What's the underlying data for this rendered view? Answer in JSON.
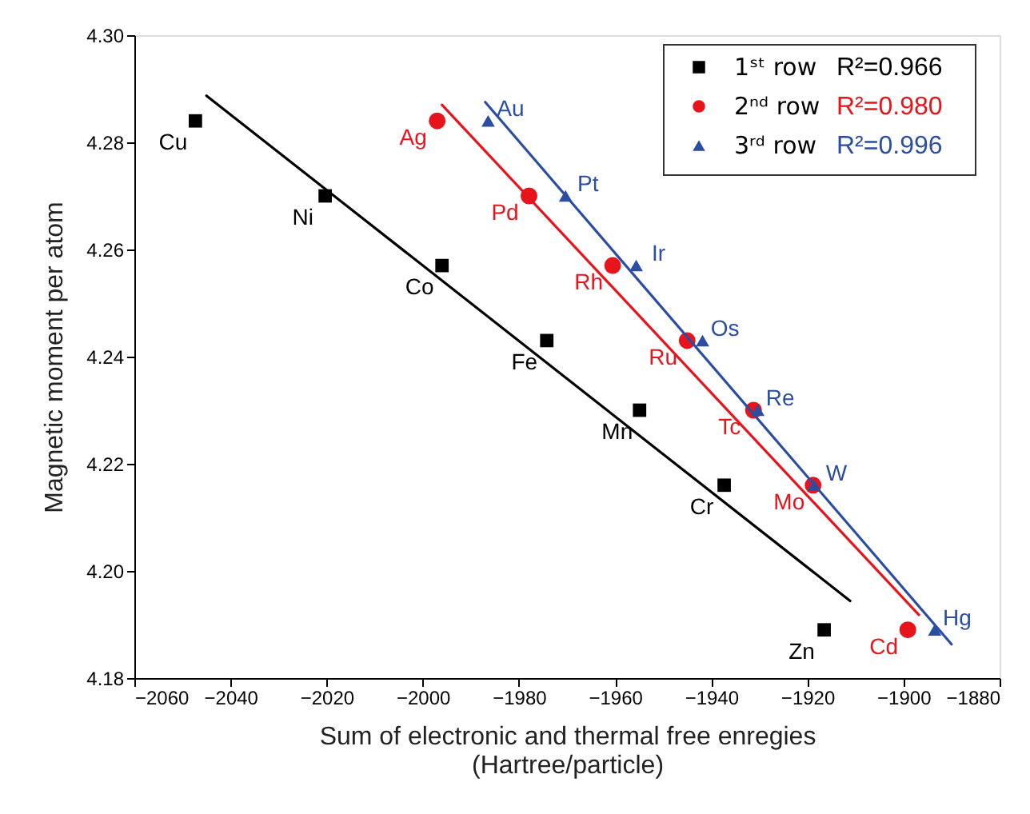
{
  "chart_data": {
    "type": "scatter",
    "xlabel": "Sum of  electronic and thermal free enregies\n(Hartree/particle)",
    "ylabel": "Magnetic moment per atom",
    "xlim": [
      -2060,
      -1880
    ],
    "xticks": [
      -2060,
      -2040,
      -2020,
      -2000,
      -1980,
      -1960,
      -1940,
      -1920,
      -1900,
      -1880
    ],
    "ylim": [
      4.18,
      4.3
    ],
    "yticks": [
      4.18,
      {
        "value": 4.2,
        "label": "4.20"
      },
      4.22,
      4.24,
      4.26,
      4.28,
      {
        "value": 4.3,
        "label": "4.30"
      }
    ],
    "grid": false,
    "legend": "top right",
    "series": [
      {
        "name": "1ˢᵗ row",
        "marker": "square",
        "color": "#000000",
        "x": [
          -2047.3,
          -2020.3,
          -1996.0,
          -1974.2,
          -1954.9,
          -1937.3,
          -1916.5
        ],
        "values": [
          4.284,
          4.27,
          4.257,
          4.243,
          4.23,
          4.216,
          4.189
        ]
      },
      {
        "name": "2ⁿᵈ row",
        "marker": "circle",
        "color": "#e8141b",
        "x": [
          -1997.0,
          -1977.9,
          -1960.5,
          -1945.0,
          -1931.2,
          -1918.8,
          -1899.1
        ],
        "values": [
          4.284,
          4.27,
          4.257,
          4.243,
          4.23,
          4.216,
          4.189
        ]
      },
      {
        "name": "3ʳᵈ row",
        "marker": "triangle",
        "color": "#2b4ea2",
        "x": [
          -1986.4,
          -1970.3,
          -1955.6,
          -1941.8,
          -1930.3,
          -1918.6,
          -1893.5
        ],
        "values": [
          4.284,
          4.27,
          4.257,
          4.243,
          4.23,
          4.216,
          4.189
        ]
      },
      {
        "type": "line",
        "line_style": "solid",
        "color": "#000000",
        "x": [
          -2045.0,
          -1911.1
        ],
        "values": [
          4.2887,
          4.1944
        ]
      },
      {
        "type": "line",
        "line_style": "solid",
        "color": "#e8141b",
        "x": [
          -1996.0,
          -1896.8
        ],
        "values": [
          4.287,
          4.1918
        ]
      },
      {
        "type": "line",
        "line_style": "solid",
        "color": "#2b4ea2",
        "x": [
          -1987.0,
          -1890.0
        ],
        "values": [
          4.2875,
          4.1863
        ]
      }
    ],
    "annotations": [
      "R²=0.966",
      "R²=0.980",
      "R²=0.996",
      {
        "text": "Cu",
        "x": -2047.3,
        "y": 4.284
      },
      {
        "text": "Ni",
        "x": -2020.3,
        "y": 4.27
      },
      {
        "text": "Co",
        "x": -1996.0,
        "y": 4.257
      },
      {
        "text": "Fe",
        "x": -1974.2,
        "y": 4.243
      },
      {
        "text": "Mn",
        "x": -1954.9,
        "y": 4.23
      },
      {
        "text": "Cr",
        "x": -1937.3,
        "y": 4.216
      },
      {
        "text": "Zn",
        "x": -1916.5,
        "y": 4.189
      },
      {
        "text": "Ag",
        "x": -1997.0,
        "y": 4.284
      },
      {
        "text": "Pd",
        "x": -1977.9,
        "y": 4.27
      },
      {
        "text": "Rh",
        "x": -1960.5,
        "y": 4.257
      },
      {
        "text": "Ru",
        "x": -1945.0,
        "y": 4.243
      },
      {
        "text": "Tc",
        "x": -1931.2,
        "y": 4.23
      },
      {
        "text": "Mo",
        "x": -1918.8,
        "y": 4.216
      },
      {
        "text": "Cd",
        "x": -1899.1,
        "y": 4.189
      },
      {
        "text": "Au",
        "x": -1986.4,
        "y": 4.284
      },
      {
        "text": "Pt",
        "x": -1970.3,
        "y": 4.27
      },
      {
        "text": "Ir",
        "x": -1955.6,
        "y": 4.257
      },
      {
        "text": "Os",
        "x": -1941.8,
        "y": 4.243
      },
      {
        "text": "Re",
        "x": -1930.3,
        "y": 4.23
      },
      {
        "text": "W",
        "x": -1918.6,
        "y": 4.216
      },
      {
        "text": "Hg",
        "x": -1893.5,
        "y": 4.189
      }
    ]
  }
}
